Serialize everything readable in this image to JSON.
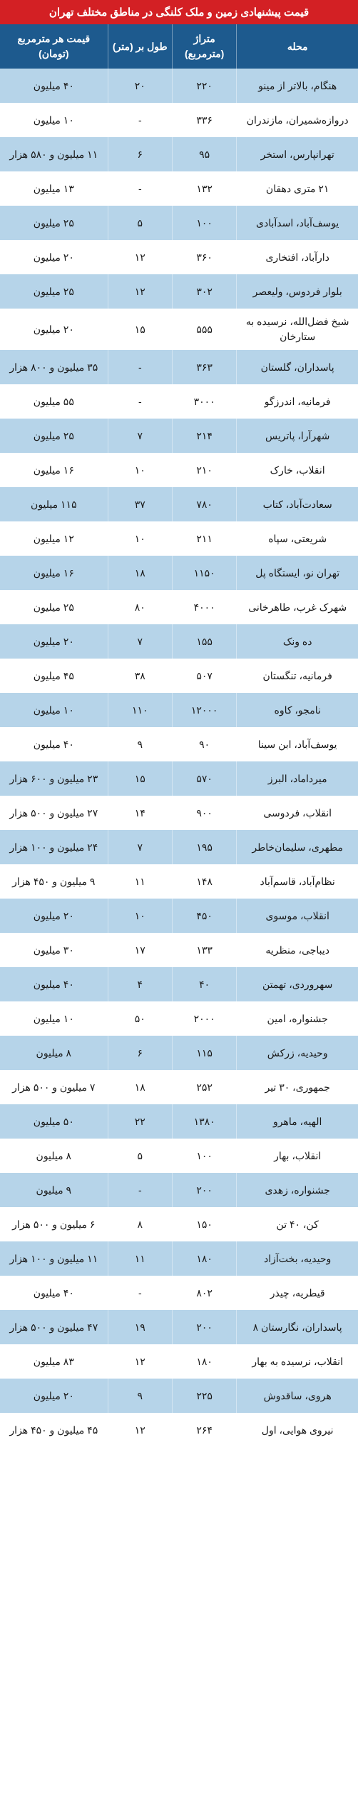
{
  "title": "قیمت پیشنهادی زمین و ملک کلنگی در مناطق مختلف تهران",
  "headers": {
    "neighborhood": "محله",
    "area": "متراژ (مترمربع)",
    "width": "طول بر (متر)",
    "price": "قیمت هر مترمربع (تومان)"
  },
  "colors": {
    "title_bg": "#d32024",
    "header_bg": "#1d5a8e",
    "row_even_bg": "#b6d4e9",
    "row_odd_bg": "#ffffff",
    "header_text": "#ffffff",
    "body_text": "#1a1a1a"
  },
  "column_widths": {
    "neighborhood": "34%",
    "area": "18%",
    "width": "18%",
    "price": "30%"
  },
  "rows": [
    {
      "neighborhood": "هنگام، بالاتر از مینو",
      "area": "۲۲۰",
      "width": "۲۰",
      "price": "۴۰ میلیون"
    },
    {
      "neighborhood": "دروازه‌شمیران، مازندران",
      "area": "۳۳۶",
      "width": "-",
      "price": "۱۰ میلیون"
    },
    {
      "neighborhood": "تهرانپارس، استخر",
      "area": "۹۵",
      "width": "۶",
      "price": "۱۱ میلیون و ۵۸۰ هزار"
    },
    {
      "neighborhood": "۲۱ متری دهقان",
      "area": "۱۳۲",
      "width": "-",
      "price": "۱۳ میلیون"
    },
    {
      "neighborhood": "یوسف‌آباد، اسدآبادی",
      "area": "۱۰۰",
      "width": "۵",
      "price": "۲۵ میلیون"
    },
    {
      "neighborhood": "دارآباد، افتخاری",
      "area": "۳۶۰",
      "width": "۱۲",
      "price": "۲۰ میلیون"
    },
    {
      "neighborhood": "بلوار فردوس، ولیعصر",
      "area": "۳۰۲",
      "width": "۱۲",
      "price": "۲۵ میلیون"
    },
    {
      "neighborhood": "شیخ فضل‌الله، نرسیده به ستارخان",
      "area": "۵۵۵",
      "width": "۱۵",
      "price": "۲۰ میلیون"
    },
    {
      "neighborhood": "پاسداران، گلستان",
      "area": "۳۶۳",
      "width": "-",
      "price": "۳۵ میلیون و ۸۰۰ هزار"
    },
    {
      "neighborhood": "فرمانیه، اندرزگو",
      "area": "۳۰۰۰",
      "width": "-",
      "price": "۵۵ میلیون"
    },
    {
      "neighborhood": "شهرآرا، پاتریس",
      "area": "۲۱۴",
      "width": "۷",
      "price": "۲۵ میلیون"
    },
    {
      "neighborhood": "انقلاب، خارک",
      "area": "۲۱۰",
      "width": "۱۰",
      "price": "۱۶ میلیون"
    },
    {
      "neighborhood": "سعادت‌آباد، کتاب",
      "area": "۷۸۰",
      "width": "۳۷",
      "price": "۱۱۵ میلیون"
    },
    {
      "neighborhood": "شریعتی، سپاه",
      "area": "۲۱۱",
      "width": "۱۰",
      "price": "۱۲ میلیون"
    },
    {
      "neighborhood": "تهران نو، ایستگاه پل",
      "area": "۱۱۵۰",
      "width": "۱۸",
      "price": "۱۶ میلیون"
    },
    {
      "neighborhood": "شهرک غرب، طاهرخانی",
      "area": "۴۰۰۰",
      "width": "۸۰",
      "price": "۲۵ میلیون"
    },
    {
      "neighborhood": "ده ونک",
      "area": "۱۵۵",
      "width": "۷",
      "price": "۲۰ میلیون"
    },
    {
      "neighborhood": "فرمانیه، تنگستان",
      "area": "۵۰۷",
      "width": "۳۸",
      "price": "۴۵ میلیون"
    },
    {
      "neighborhood": "نامجو، کاوه",
      "area": "۱۲۰۰۰",
      "width": "۱۱۰",
      "price": "۱۰ میلیون"
    },
    {
      "neighborhood": "یوسف‌آباد، ابن سینا",
      "area": "۹۰",
      "width": "۹",
      "price": "۴۰ میلیون"
    },
    {
      "neighborhood": "میرداماد، البرز",
      "area": "۵۷۰",
      "width": "۱۵",
      "price": "۲۳ میلیون و ۶۰۰ هزار"
    },
    {
      "neighborhood": "انقلاب، فردوسی",
      "area": "۹۰۰",
      "width": "۱۴",
      "price": "۲۷ میلیون و ۵۰۰ هزار"
    },
    {
      "neighborhood": "مطهری، سلیمان‌خاطر",
      "area": "۱۹۵",
      "width": "۷",
      "price": "۲۴ میلیون و ۱۰۰ هزار"
    },
    {
      "neighborhood": "نظام‌آباد، قاسم‌آباد",
      "area": "۱۴۸",
      "width": "۱۱",
      "price": "۹ میلیون و ۴۵۰ هزار"
    },
    {
      "neighborhood": "انقلاب، موسوی",
      "area": "۴۵۰",
      "width": "۱۰",
      "price": "۲۰ میلیون"
    },
    {
      "neighborhood": "دیباجی، منظریه",
      "area": "۱۳۳",
      "width": "۱۷",
      "price": "۳۰ میلیون"
    },
    {
      "neighborhood": "سهروردی، تهمتن",
      "area": "۴۰",
      "width": "۴",
      "price": "۴۰ میلیون"
    },
    {
      "neighborhood": "جشنواره، امین",
      "area": "۲۰۰۰",
      "width": "۵۰",
      "price": "۱۰ میلیون"
    },
    {
      "neighborhood": "وحیدیه، زرکش",
      "area": "۱۱۵",
      "width": "۶",
      "price": "۸ میلیون"
    },
    {
      "neighborhood": "جمهوری، ۳۰ تیر",
      "area": "۲۵۲",
      "width": "۱۸",
      "price": "۷ میلیون و ۵۰۰ هزار"
    },
    {
      "neighborhood": "الهیه، ماهرو",
      "area": "۱۳۸۰",
      "width": "۲۲",
      "price": "۵۰ میلیون"
    },
    {
      "neighborhood": "انقلاب، بهار",
      "area": "۱۰۰",
      "width": "۵",
      "price": "۸ میلیون"
    },
    {
      "neighborhood": "جشنواره، زهدی",
      "area": "۲۰۰",
      "width": "-",
      "price": "۹ میلیون"
    },
    {
      "neighborhood": "کن، ۴۰ تن",
      "area": "۱۵۰",
      "width": "۸",
      "price": "۶ میلیون و ۵۰۰ هزار"
    },
    {
      "neighborhood": "وحیدیه، بخت‌آزاد",
      "area": "۱۸۰",
      "width": "۱۱",
      "price": "۱۱ میلیون و ۱۰۰ هزار"
    },
    {
      "neighborhood": "قیطریه، چیذر",
      "area": "۸۰۲",
      "width": "-",
      "price": "۴۰ میلیون"
    },
    {
      "neighborhood": "پاسداران، نگارستان ۸",
      "area": "۲۰۰",
      "width": "۱۹",
      "price": "۴۷ میلیون و ۵۰۰ هزار"
    },
    {
      "neighborhood": "انقلاب، نرسیده به بهار",
      "area": "۱۸۰",
      "width": "۱۲",
      "price": "۸۳ میلیون"
    },
    {
      "neighborhood": "هروی، ساقدوش",
      "area": "۲۲۵",
      "width": "۹",
      "price": "۲۰ میلیون"
    },
    {
      "neighborhood": "نیروی هوایی، اول",
      "area": "۲۶۴",
      "width": "۱۲",
      "price": "۴۵ میلیون و ۴۵۰ هزار"
    }
  ]
}
